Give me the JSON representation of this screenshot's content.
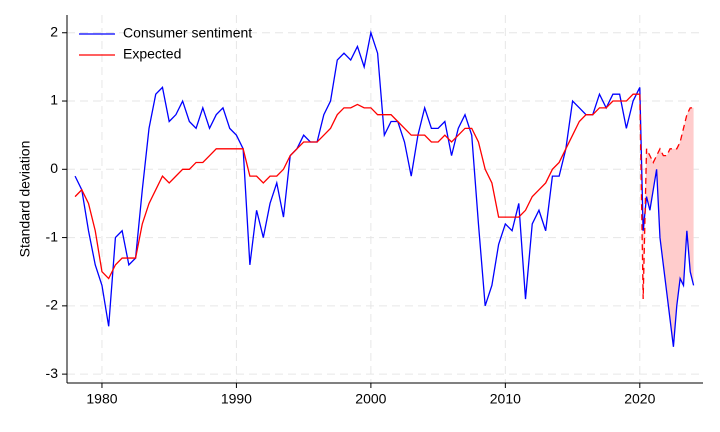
{
  "chart_data": {
    "type": "line",
    "y_label": "Standard deviation",
    "xlim": [
      1977.4,
      2024.7
    ],
    "xticks": [
      1980,
      1990,
      2000,
      2010,
      2020
    ],
    "ylim": [
      -3.13,
      2.26
    ],
    "yticks": [
      -3,
      -2,
      -1,
      0,
      1,
      2
    ],
    "grid": true,
    "legend": "top-left",
    "projection_start": 2020,
    "shade_color": "#ffcccc",
    "x": [
      1978.0,
      1978.5,
      1979.0,
      1979.5,
      1980.0,
      1980.5,
      1981.0,
      1981.5,
      1982.0,
      1982.5,
      1983.0,
      1983.5,
      1984.0,
      1984.5,
      1985.0,
      1985.5,
      1986.0,
      1986.5,
      1987.0,
      1987.5,
      1988.0,
      1988.5,
      1989.0,
      1989.5,
      1990.0,
      1990.5,
      1991.0,
      1991.5,
      1992.0,
      1992.5,
      1993.0,
      1993.5,
      1994.0,
      1994.5,
      1995.0,
      1995.5,
      1996.0,
      1996.5,
      1997.0,
      1997.5,
      1998.0,
      1998.5,
      1999.0,
      1999.5,
      2000.0,
      2000.5,
      2001.0,
      2001.5,
      2002.0,
      2002.5,
      2003.0,
      2003.5,
      2004.0,
      2004.5,
      2005.0,
      2005.5,
      2006.0,
      2006.5,
      2007.0,
      2007.5,
      2008.0,
      2008.5,
      2009.0,
      2009.5,
      2010.0,
      2010.5,
      2011.0,
      2011.5,
      2012.0,
      2012.5,
      2013.0,
      2013.5,
      2014.0,
      2014.5,
      2015.0,
      2015.5,
      2016.0,
      2016.5,
      2017.0,
      2017.5,
      2018.0,
      2018.5,
      2019.0,
      2019.5,
      2020.0,
      2020.25,
      2020.5,
      2020.75,
      2021.0,
      2021.25,
      2021.5,
      2021.75,
      2022.0,
      2022.25,
      2022.5,
      2022.75,
      2023.0,
      2023.25,
      2023.5,
      2023.75,
      2024.0
    ],
    "series": [
      {
        "name": "Consumer sentiment",
        "color": "#0000ff",
        "values": [
          -0.1,
          -0.3,
          -0.9,
          -1.4,
          -1.7,
          -2.3,
          -1.0,
          -0.9,
          -1.4,
          -1.3,
          -0.3,
          0.6,
          1.1,
          1.2,
          0.7,
          0.8,
          1.0,
          0.7,
          0.6,
          0.9,
          0.6,
          0.8,
          0.9,
          0.6,
          0.5,
          0.3,
          -1.4,
          -0.6,
          -1.0,
          -0.5,
          -0.2,
          -0.7,
          0.2,
          0.3,
          0.5,
          0.4,
          0.4,
          0.8,
          1.0,
          1.6,
          1.7,
          1.6,
          1.8,
          1.5,
          2.0,
          1.7,
          0.5,
          0.7,
          0.7,
          0.4,
          -0.1,
          0.5,
          0.9,
          0.6,
          0.6,
          0.7,
          0.2,
          0.6,
          0.8,
          0.5,
          -0.8,
          -2.0,
          -1.7,
          -1.1,
          -0.8,
          -0.9,
          -0.5,
          -1.9,
          -0.8,
          -0.6,
          -0.9,
          -0.1,
          -0.1,
          0.3,
          1.0,
          0.9,
          0.8,
          0.8,
          1.1,
          0.9,
          1.1,
          1.1,
          0.6,
          1.0,
          1.2,
          -0.9,
          -0.4,
          -0.6,
          -0.3,
          0.0,
          -1.0,
          -1.4,
          -1.8,
          -2.2,
          -2.6,
          -2.0,
          -1.6,
          -1.7,
          -0.9,
          -1.5,
          -1.7
        ]
      },
      {
        "name": "Expected",
        "color": "#ff0000",
        "values": [
          -0.4,
          -0.3,
          -0.5,
          -0.9,
          -1.5,
          -1.6,
          -1.4,
          -1.3,
          -1.3,
          -1.3,
          -0.8,
          -0.5,
          -0.3,
          -0.1,
          -0.2,
          -0.1,
          0.0,
          0.0,
          0.1,
          0.1,
          0.2,
          0.3,
          0.3,
          0.3,
          0.3,
          0.3,
          -0.1,
          -0.1,
          -0.2,
          -0.1,
          -0.1,
          0.0,
          0.2,
          0.3,
          0.4,
          0.4,
          0.4,
          0.5,
          0.6,
          0.8,
          0.9,
          0.9,
          0.95,
          0.9,
          0.9,
          0.8,
          0.8,
          0.8,
          0.7,
          0.6,
          0.5,
          0.5,
          0.5,
          0.4,
          0.4,
          0.5,
          0.4,
          0.5,
          0.6,
          0.6,
          0.4,
          0.0,
          -0.2,
          -0.7,
          -0.7,
          -0.7,
          -0.7,
          -0.6,
          -0.4,
          -0.3,
          -0.2,
          0.0,
          0.1,
          0.3,
          0.5,
          0.7,
          0.8,
          0.8,
          0.9,
          0.9,
          1.0,
          1.0,
          1.0,
          1.1,
          1.1,
          -1.9,
          0.3,
          0.2,
          0.1,
          0.2,
          0.3,
          0.2,
          0.2,
          0.3,
          0.3,
          0.3,
          0.4,
          0.6,
          0.8,
          0.9,
          0.9
        ]
      }
    ]
  }
}
